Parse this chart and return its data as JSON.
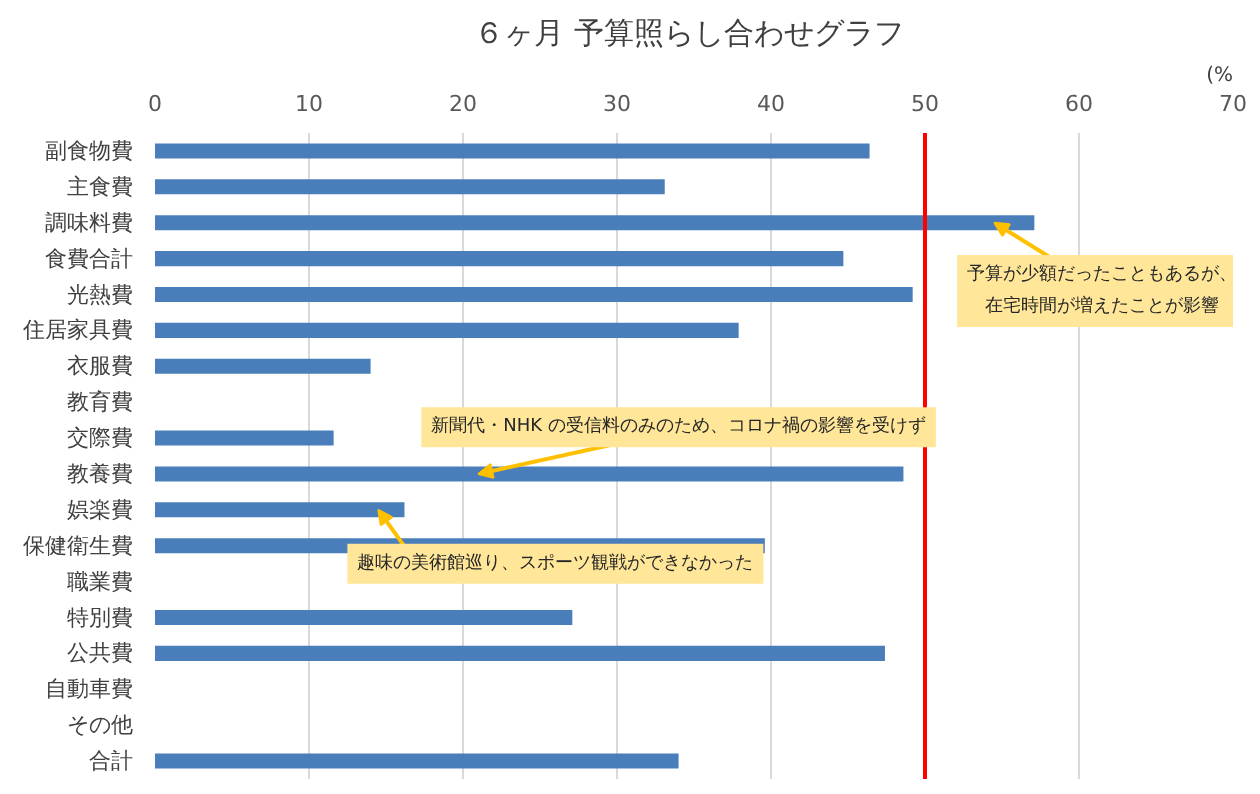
{
  "chart_data": {
    "type": "bar",
    "orientation": "horizontal",
    "title": "６ヶ月  予算照らし合わせグラフ",
    "categories": [
      "副食物費",
      "主食費",
      "調味料費",
      "食費合計",
      "光熱費",
      "住居家具費",
      "衣服費",
      "教育費",
      "交際費",
      "教養費",
      "娯楽費",
      "保健衛生費",
      "職業費",
      "特別費",
      "公共費",
      "自動車費",
      "その他",
      "合計"
    ],
    "values": [
      46.4,
      33.1,
      57.1,
      44.7,
      49.2,
      37.9,
      14.0,
      0,
      11.6,
      48.6,
      16.2,
      39.6,
      0,
      27.1,
      47.4,
      0,
      0,
      34.0
    ],
    "color": "#4a7ebb",
    "xlim": [
      0,
      70
    ],
    "xticks": [
      0,
      10,
      20,
      30,
      40,
      50,
      60,
      70
    ],
    "grid": "x",
    "ref_lines": [
      {
        "axis": "x",
        "value": 50,
        "color": "#ff0000"
      }
    ],
    "annotations": [
      "(%",
      {
        "text": "予算が少額だったこともあるが、在宅時間が増えたことが影響",
        "x": 54.5,
        "y": "調味料費"
      },
      {
        "text": "新聞代・NHK の受信料のみのため、コロナ禍の影響を受けず",
        "x": 21,
        "y": "教養費"
      },
      {
        "text": "趣味の美術館巡り、スポーツ観戦ができなかった",
        "x": 14.5,
        "y": "娯楽費"
      }
    ]
  }
}
